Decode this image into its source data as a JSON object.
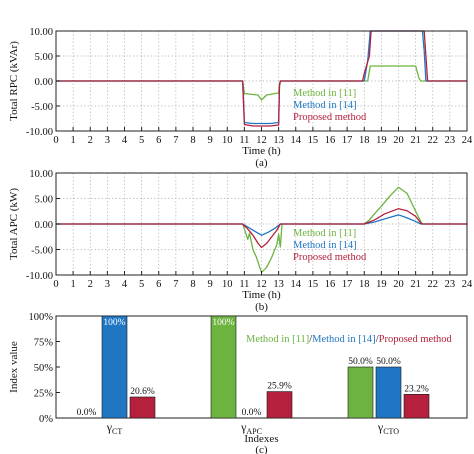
{
  "chart_data": [
    {
      "id": "a",
      "type": "line",
      "xlabel": "Time (h)",
      "ylabel": "Total RPC (kVAr)",
      "caption": "(a)",
      "xlim": [
        0,
        24
      ],
      "ylim": [
        -10,
        10
      ],
      "xticks": [
        0,
        1,
        2,
        3,
        4,
        5,
        6,
        7,
        8,
        9,
        10,
        11,
        12,
        13,
        14,
        15,
        16,
        17,
        18,
        19,
        20,
        21,
        22,
        23,
        24
      ],
      "yticks": [
        -10,
        -5,
        0,
        5,
        10
      ],
      "ytick_labels": [
        "-10.00",
        "-5.00",
        "0.00",
        "5.00",
        "10.00"
      ],
      "legend_position": "center-right",
      "series": [
        {
          "name": "Method in [11]",
          "color": "#6cb33f",
          "points": [
            [
              0,
              0
            ],
            [
              10.9,
              0
            ],
            [
              11.0,
              -2.5
            ],
            [
              11.5,
              -2.7
            ],
            [
              11.8,
              -2.8
            ],
            [
              12.0,
              -3.8
            ],
            [
              12.3,
              -2.8
            ],
            [
              12.8,
              -2.5
            ],
            [
              13.0,
              -2.4
            ],
            [
              13.05,
              -0.5
            ],
            [
              13.1,
              0
            ],
            [
              18.2,
              0
            ],
            [
              18.35,
              3.0
            ],
            [
              19.5,
              3.0
            ],
            [
              21.0,
              3.0
            ],
            [
              21.2,
              0.5
            ],
            [
              21.3,
              0
            ],
            [
              24,
              0
            ]
          ]
        },
        {
          "name": "Method in [14]",
          "color": "#1f77c4",
          "points": [
            [
              0,
              0
            ],
            [
              10.9,
              0
            ],
            [
              11.0,
              -8.3
            ],
            [
              11.5,
              -8.5
            ],
            [
              12.5,
              -8.5
            ],
            [
              13.0,
              -8.3
            ],
            [
              13.05,
              -1
            ],
            [
              13.1,
              0
            ],
            [
              18.0,
              0
            ],
            [
              18.2,
              4.0
            ],
            [
              18.35,
              10.0
            ],
            [
              21.4,
              10.0
            ],
            [
              21.5,
              6.0
            ],
            [
              21.6,
              0
            ],
            [
              24,
              0
            ]
          ]
        },
        {
          "name": "Proposed method",
          "color": "#b5203c",
          "points": [
            [
              0,
              0
            ],
            [
              10.9,
              0
            ],
            [
              11.0,
              -8.7
            ],
            [
              11.5,
              -9.0
            ],
            [
              12.5,
              -9.0
            ],
            [
              13.0,
              -8.8
            ],
            [
              13.05,
              -1
            ],
            [
              13.1,
              0
            ],
            [
              17.9,
              0
            ],
            [
              18.0,
              1.5
            ],
            [
              18.3,
              5.0
            ],
            [
              18.4,
              10.0
            ],
            [
              21.5,
              10.0
            ],
            [
              21.6,
              5.0
            ],
            [
              21.7,
              0
            ],
            [
              24,
              0
            ]
          ]
        }
      ]
    },
    {
      "id": "b",
      "type": "line",
      "xlabel": "Time (h)",
      "ylabel": "Total APC (kW)",
      "caption": "(b)",
      "xlim": [
        0,
        24
      ],
      "ylim": [
        -10,
        10
      ],
      "xticks": [
        0,
        1,
        2,
        3,
        4,
        5,
        6,
        7,
        8,
        9,
        10,
        11,
        12,
        13,
        14,
        15,
        16,
        17,
        18,
        19,
        20,
        21,
        22,
        23,
        24
      ],
      "yticks": [
        -10,
        -5,
        0,
        5,
        10
      ],
      "ytick_labels": [
        "-10.00",
        "-5.00",
        "0.00",
        "5.00",
        "10.00"
      ],
      "legend_position": "center-right",
      "series": [
        {
          "name": "Method in [11]",
          "color": "#6cb33f",
          "points": [
            [
              0,
              0
            ],
            [
              10.9,
              0
            ],
            [
              11.0,
              -1.0
            ],
            [
              11.2,
              -3.0
            ],
            [
              11.3,
              -1.8
            ],
            [
              11.5,
              -5.0
            ],
            [
              11.7,
              -6.5
            ],
            [
              12.0,
              -9.5
            ],
            [
              12.3,
              -8.5
            ],
            [
              12.6,
              -6.5
            ],
            [
              12.9,
              -4.0
            ],
            [
              13.0,
              -2.0
            ],
            [
              13.1,
              -4.5
            ],
            [
              13.2,
              0
            ],
            [
              18.0,
              0
            ],
            [
              18.3,
              0.8
            ],
            [
              18.6,
              2.0
            ],
            [
              19.0,
              3.5
            ],
            [
              19.5,
              5.5
            ],
            [
              20.0,
              7.2
            ],
            [
              20.5,
              6.0
            ],
            [
              21.0,
              2.5
            ],
            [
              21.3,
              0.5
            ],
            [
              21.4,
              0
            ],
            [
              24,
              0
            ]
          ]
        },
        {
          "name": "Method in [14]",
          "color": "#1f77c4",
          "points": [
            [
              0,
              0
            ],
            [
              10.9,
              0
            ],
            [
              11.2,
              -0.6
            ],
            [
              11.6,
              -1.4
            ],
            [
              12.0,
              -2.2
            ],
            [
              12.4,
              -1.6
            ],
            [
              12.8,
              -0.8
            ],
            [
              13.1,
              0
            ],
            [
              18.0,
              0
            ],
            [
              18.6,
              0.4
            ],
            [
              19.2,
              1.0
            ],
            [
              20.0,
              1.8
            ],
            [
              20.5,
              1.2
            ],
            [
              21.0,
              0.5
            ],
            [
              21.3,
              0
            ],
            [
              24,
              0
            ]
          ]
        },
        {
          "name": "Proposed method",
          "color": "#b5203c",
          "points": [
            [
              0,
              0
            ],
            [
              10.9,
              0
            ],
            [
              11.2,
              -1.0
            ],
            [
              11.5,
              -2.2
            ],
            [
              11.8,
              -3.8
            ],
            [
              12.0,
              -4.6
            ],
            [
              12.3,
              -3.8
            ],
            [
              12.6,
              -2.5
            ],
            [
              12.9,
              -1.2
            ],
            [
              13.1,
              0
            ],
            [
              18.0,
              0
            ],
            [
              18.6,
              0.8
            ],
            [
              19.2,
              2.0
            ],
            [
              20.0,
              3.0
            ],
            [
              20.5,
              2.6
            ],
            [
              21.0,
              1.5
            ],
            [
              21.3,
              0.2
            ],
            [
              21.4,
              0
            ],
            [
              24,
              0
            ]
          ]
        }
      ]
    },
    {
      "id": "c",
      "type": "bar",
      "xlabel": "Indexes",
      "ylabel": "Index value",
      "caption": "(c)",
      "ylim": [
        0,
        100
      ],
      "yticks": [
        0,
        25,
        50,
        75,
        100
      ],
      "ytick_labels": [
        "0%",
        "25%",
        "50%",
        "75%",
        "100%"
      ],
      "legend_position": "top-right",
      "legend_text": [
        "Method in [11]",
        "/",
        "Method in [14]",
        "/",
        "Proposed method"
      ],
      "categories": [
        {
          "main": "γ",
          "sub": "CT"
        },
        {
          "main": "γ",
          "sub": "APC"
        },
        {
          "main": "γ",
          "sub": "CTO"
        }
      ],
      "series": [
        {
          "name": "Method in [11]",
          "color": "#6cb33f",
          "values": [
            0.0,
            100,
            50.0
          ],
          "labels": [
            "0.0%",
            "100%",
            "50.0%"
          ]
        },
        {
          "name": "Method in [14]",
          "color": "#1f77c4",
          "values": [
            100,
            0.0,
            50.0
          ],
          "labels": [
            "100%",
            "0.0%",
            "50.0%"
          ]
        },
        {
          "name": "Proposed method",
          "color": "#b5203c",
          "values": [
            20.6,
            25.9,
            23.2
          ],
          "labels": [
            "20.6%",
            "25.9%",
            "23.2%"
          ]
        }
      ]
    }
  ]
}
